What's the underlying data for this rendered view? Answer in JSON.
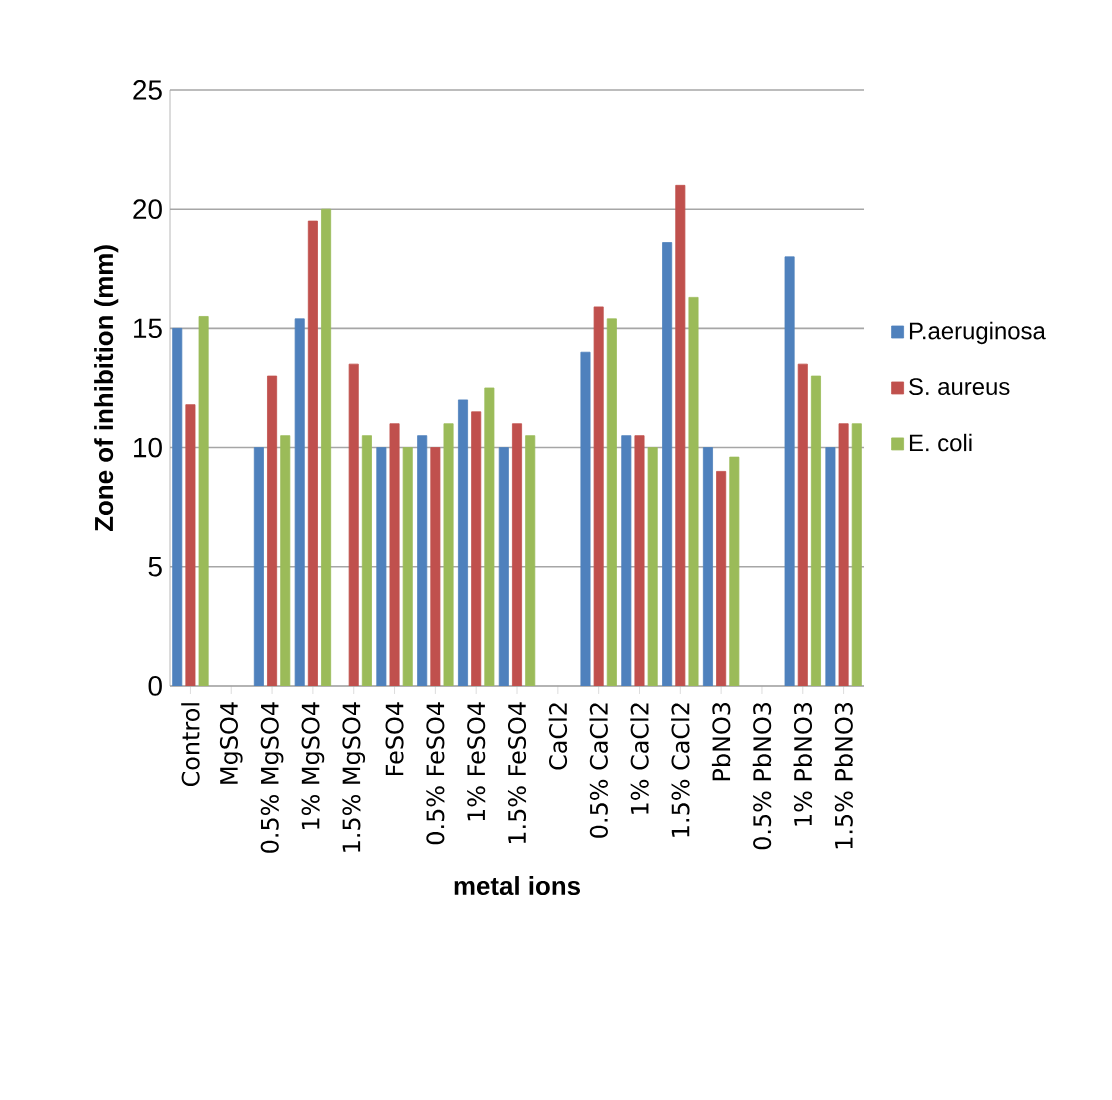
{
  "chart_data": {
    "type": "bar",
    "xlabel": "metal ions",
    "ylabel": "Zone of inhibition (mm)",
    "categories": [
      "Control",
      "MgSO4",
      "0.5% MgSO4",
      "1% MgSO4",
      "1.5% MgSO4",
      "FeSO4",
      "0.5% FeSO4",
      "1% FeSO4",
      "1.5% FeSO4",
      "CaCl2",
      "0.5% CaCl2",
      "1% CaCl2",
      "1.5% CaCl2",
      "PbNO3",
      "0.5% PbNO3",
      "1% PbNO3",
      "1.5% PbNO3"
    ],
    "series": [
      {
        "name": "P.aeruginosa",
        "color": "#4f81bd",
        "values": [
          15,
          null,
          10,
          15.4,
          null,
          10,
          10.5,
          12,
          10,
          null,
          14,
          10.5,
          18.6,
          10,
          null,
          18,
          10
        ]
      },
      {
        "name": "S. aureus",
        "color": "#c0504d",
        "values": [
          11.8,
          null,
          13,
          19.5,
          13.5,
          11,
          10,
          11.5,
          11,
          null,
          15.9,
          10.5,
          21,
          9,
          null,
          13.5,
          11
        ]
      },
      {
        "name": "E. coli",
        "color": "#9bbb59",
        "values": [
          15.5,
          null,
          10.5,
          20,
          10.5,
          10,
          11,
          12.5,
          10.5,
          null,
          15.4,
          10,
          16.3,
          9.6,
          null,
          13,
          11
        ]
      }
    ],
    "ylim": [
      0,
      25
    ],
    "yticks": [
      0,
      5,
      10,
      15,
      20,
      25
    ],
    "grid": "y",
    "legend": "right"
  }
}
